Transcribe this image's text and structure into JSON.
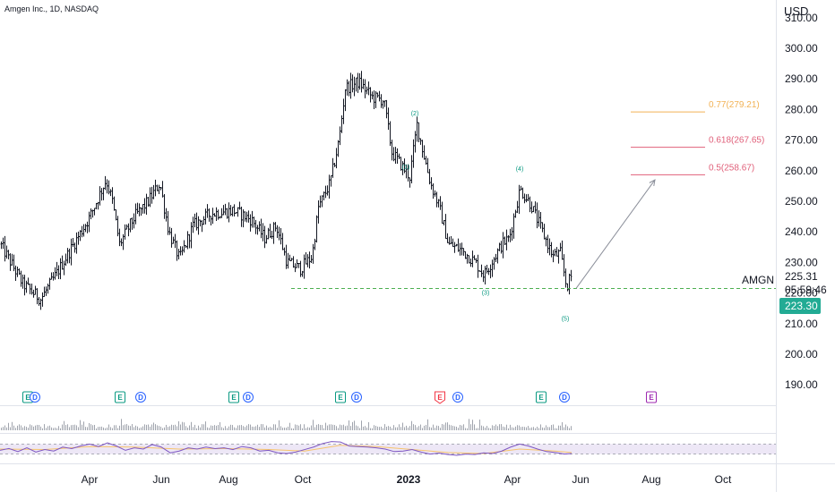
{
  "header": {
    "symbol_title": "Amgen Inc., 1D, NASDAQ",
    "currency": "USD"
  },
  "price_scale": {
    "last_price": "225.31",
    "countdown": "05:59:46",
    "marker_price": "223.30",
    "marker_color": "#22ab94",
    "series_label": "AMGN"
  },
  "colors": {
    "fib_077": "#f2b255",
    "fib_0618": "#e0607a",
    "fib_05": "#e0607a",
    "support_line": "#4caf50",
    "wave_label": "#089981",
    "rsi_line": "#7e57c2",
    "rsi_ma": "#f7c46c",
    "rsi_band": "#ede7f6",
    "earnings": "#089981",
    "earnings_negative": "#f23645",
    "earnings_upcoming": "#9c27b0",
    "dividend": "#2962ff",
    "bars": "#131722"
  },
  "chart_data": {
    "type": "bar",
    "title": "Amgen Inc., 1D, NASDAQ",
    "y_axis": {
      "ticks": [
        "310.00",
        "300.00",
        "290.00",
        "280.00",
        "270.00",
        "260.00",
        "250.00",
        "240.00",
        "230.00",
        "220.00",
        "210.00",
        "200.00",
        "190.00"
      ],
      "range": [
        185,
        313
      ]
    },
    "x_axis": {
      "ticks": [
        {
          "label": "Apr",
          "bold": false
        },
        {
          "label": "Jun",
          "bold": false
        },
        {
          "label": "Aug",
          "bold": false
        },
        {
          "label": "Oct",
          "bold": false
        },
        {
          "label": "2023",
          "bold": true
        },
        {
          "label": "Apr",
          "bold": false
        },
        {
          "label": "Jun",
          "bold": false
        },
        {
          "label": "Aug",
          "bold": false
        },
        {
          "label": "Oct",
          "bold": false
        }
      ]
    },
    "price_path": [
      [
        0,
        236
      ],
      [
        25,
        223
      ],
      [
        45,
        218
      ],
      [
        60,
        225
      ],
      [
        80,
        235
      ],
      [
        100,
        245
      ],
      [
        118,
        257
      ],
      [
        125,
        250
      ],
      [
        133,
        236
      ],
      [
        150,
        245
      ],
      [
        165,
        250
      ],
      [
        178,
        256
      ],
      [
        188,
        240
      ],
      [
        200,
        231
      ],
      [
        215,
        242
      ],
      [
        235,
        246
      ],
      [
        260,
        247
      ],
      [
        280,
        244
      ],
      [
        295,
        238
      ],
      [
        308,
        242
      ],
      [
        320,
        230
      ],
      [
        335,
        228
      ],
      [
        348,
        232
      ],
      [
        355,
        248
      ],
      [
        368,
        256
      ],
      [
        378,
        270
      ],
      [
        385,
        287
      ],
      [
        400,
        289
      ],
      [
        415,
        284
      ],
      [
        428,
        283
      ],
      [
        437,
        266
      ],
      [
        447,
        262
      ],
      [
        457,
        258
      ],
      [
        465,
        275
      ],
      [
        472,
        266
      ],
      [
        480,
        256
      ],
      [
        490,
        248
      ],
      [
        500,
        236
      ],
      [
        515,
        234
      ],
      [
        530,
        230
      ],
      [
        540,
        226
      ],
      [
        550,
        231
      ],
      [
        560,
        236
      ],
      [
        568,
        238
      ],
      [
        580,
        254
      ],
      [
        592,
        249
      ],
      [
        605,
        240
      ],
      [
        617,
        232
      ],
      [
        625,
        233
      ],
      [
        632,
        222
      ],
      [
        638,
        226
      ]
    ],
    "wave_labels": [
      {
        "label": "(1)",
        "value": 260.5
      },
      {
        "label": "(2)",
        "value": 278.0
      },
      {
        "label": "(3)",
        "value": 219.5
      },
      {
        "label": "(4)",
        "value": 260.0
      },
      {
        "label": "(5)",
        "value": 211.0
      }
    ],
    "fib_levels": [
      {
        "label": "0.77(279.21)",
        "value": 279.21
      },
      {
        "label": "0.618(267.65)",
        "value": 267.65
      },
      {
        "label": "0.5(258.67)",
        "value": 258.67
      }
    ],
    "support_level": 221.5,
    "projection": {
      "from": 221.5,
      "to": 257.0
    },
    "events": [
      {
        "type": "E",
        "status": "positive"
      },
      {
        "type": "D",
        "status": "dividend"
      },
      {
        "type": "E",
        "status": "positive"
      },
      {
        "type": "D",
        "status": "dividend"
      },
      {
        "type": "E",
        "status": "positive"
      },
      {
        "type": "D",
        "status": "dividend"
      },
      {
        "type": "E",
        "status": "positive"
      },
      {
        "type": "D",
        "status": "dividend"
      },
      {
        "type": "E",
        "status": "negative"
      },
      {
        "type": "D",
        "status": "dividend"
      },
      {
        "type": "E",
        "status": "positive"
      },
      {
        "type": "D",
        "status": "dividend"
      },
      {
        "type": "E",
        "status": "upcoming"
      }
    ],
    "rsi": {
      "upper_band": 70,
      "lower_band": 30,
      "path": [
        [
          0,
          45
        ],
        [
          10,
          52
        ],
        [
          20,
          40
        ],
        [
          30,
          55
        ],
        [
          40,
          38
        ],
        [
          50,
          48
        ],
        [
          60,
          42
        ],
        [
          70,
          58
        ],
        [
          80,
          52
        ],
        [
          90,
          62
        ],
        [
          100,
          70
        ],
        [
          110,
          60
        ],
        [
          120,
          75
        ],
        [
          130,
          62
        ],
        [
          140,
          45
        ],
        [
          150,
          55
        ],
        [
          160,
          50
        ],
        [
          170,
          68
        ],
        [
          180,
          58
        ],
        [
          190,
          35
        ],
        [
          200,
          42
        ],
        [
          210,
          55
        ],
        [
          220,
          50
        ],
        [
          230,
          58
        ],
        [
          240,
          52
        ],
        [
          250,
          55
        ],
        [
          260,
          48
        ],
        [
          270,
          60
        ],
        [
          280,
          55
        ],
        [
          290,
          42
        ],
        [
          300,
          45
        ],
        [
          310,
          35
        ],
        [
          320,
          32
        ],
        [
          330,
          38
        ],
        [
          340,
          48
        ],
        [
          350,
          58
        ],
        [
          360,
          72
        ],
        [
          370,
          80
        ],
        [
          380,
          78
        ],
        [
          390,
          62
        ],
        [
          400,
          60
        ],
        [
          410,
          58
        ],
        [
          420,
          55
        ],
        [
          430,
          50
        ],
        [
          440,
          40
        ],
        [
          450,
          42
        ],
        [
          460,
          48
        ],
        [
          470,
          38
        ],
        [
          480,
          30
        ],
        [
          490,
          34
        ],
        [
          500,
          28
        ],
        [
          510,
          25
        ],
        [
          520,
          30
        ],
        [
          530,
          28
        ],
        [
          540,
          35
        ],
        [
          550,
          32
        ],
        [
          560,
          42
        ],
        [
          570,
          58
        ],
        [
          580,
          70
        ],
        [
          590,
          62
        ],
        [
          600,
          50
        ],
        [
          610,
          40
        ],
        [
          620,
          36
        ],
        [
          630,
          30
        ],
        [
          638,
          32
        ]
      ],
      "ma_path": [
        [
          0,
          50
        ],
        [
          50,
          48
        ],
        [
          100,
          60
        ],
        [
          150,
          58
        ],
        [
          200,
          50
        ],
        [
          250,
          52
        ],
        [
          300,
          48
        ],
        [
          340,
          42
        ],
        [
          380,
          65
        ],
        [
          420,
          60
        ],
        [
          460,
          48
        ],
        [
          500,
          36
        ],
        [
          540,
          32
        ],
        [
          580,
          50
        ],
        [
          620,
          42
        ],
        [
          638,
          36
        ]
      ]
    }
  }
}
